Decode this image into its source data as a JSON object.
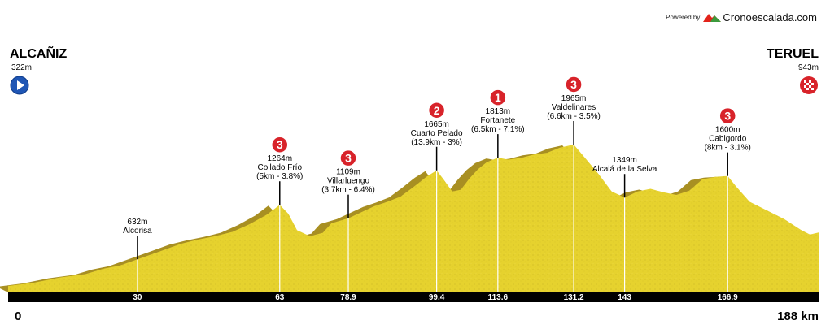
{
  "brand": {
    "powered": "Powered by",
    "name": "Cronoescalada.com"
  },
  "start": {
    "name": "ALCAÑIZ",
    "altitude": "322m",
    "icon": "play-icon"
  },
  "finish": {
    "name": "TERUEL",
    "altitude": "943m",
    "icon": "checkered-flag-icon"
  },
  "km_start_label": "0",
  "km_end_label": "188 km",
  "colors": {
    "fill": "#e6d22e",
    "shadow": "#a88f22",
    "badge": "#d8232a",
    "axis": "#000000",
    "start_icon": "#1f56b5"
  },
  "chart_data": {
    "type": "area",
    "xlabel": "",
    "ylabel": "",
    "xlim": [
      0,
      188
    ],
    "ylim": [
      0,
      2100
    ],
    "profile": [
      [
        0,
        322
      ],
      [
        6,
        360
      ],
      [
        12,
        420
      ],
      [
        18,
        460
      ],
      [
        22,
        520
      ],
      [
        26,
        560
      ],
      [
        30,
        632
      ],
      [
        35,
        720
      ],
      [
        40,
        810
      ],
      [
        44,
        860
      ],
      [
        48,
        900
      ],
      [
        52,
        950
      ],
      [
        56,
        1040
      ],
      [
        60,
        1150
      ],
      [
        63,
        1264
      ],
      [
        65,
        1160
      ],
      [
        67,
        970
      ],
      [
        70,
        900
      ],
      [
        73,
        940
      ],
      [
        75,
        1050
      ],
      [
        78.9,
        1109
      ],
      [
        82,
        1180
      ],
      [
        85,
        1250
      ],
      [
        88,
        1300
      ],
      [
        91,
        1360
      ],
      [
        94,
        1470
      ],
      [
        97,
        1590
      ],
      [
        99.4,
        1665
      ],
      [
        101,
        1560
      ],
      [
        103,
        1420
      ],
      [
        105,
        1440
      ],
      [
        107,
        1570
      ],
      [
        109,
        1680
      ],
      [
        111,
        1760
      ],
      [
        113.6,
        1813
      ],
      [
        116,
        1790
      ],
      [
        119,
        1810
      ],
      [
        122,
        1850
      ],
      [
        125,
        1870
      ],
      [
        128,
        1930
      ],
      [
        131.2,
        1965
      ],
      [
        134,
        1800
      ],
      [
        137,
        1620
      ],
      [
        140,
        1420
      ],
      [
        143,
        1349
      ],
      [
        146,
        1420
      ],
      [
        149,
        1450
      ],
      [
        152,
        1410
      ],
      [
        155,
        1380
      ],
      [
        158,
        1430
      ],
      [
        161,
        1560
      ],
      [
        164,
        1590
      ],
      [
        166.9,
        1600
      ],
      [
        169,
        1470
      ],
      [
        172,
        1300
      ],
      [
        176,
        1200
      ],
      [
        180,
        1100
      ],
      [
        184,
        970
      ],
      [
        186,
        920
      ],
      [
        188,
        943
      ]
    ],
    "markers": [
      {
        "km": "30",
        "x": 30,
        "alt": "632m",
        "name": "Alcorisa",
        "detail": "",
        "category": ""
      },
      {
        "km": "63",
        "x": 63,
        "alt": "1264m",
        "name": "Collado Frío",
        "detail": "(5km - 3.8%)",
        "category": "3"
      },
      {
        "km": "78.9",
        "x": 78.9,
        "alt": "1109m",
        "name": "Villarluengo",
        "detail": "(3.7km - 6.4%)",
        "category": "3"
      },
      {
        "km": "99.4",
        "x": 99.4,
        "alt": "1665m",
        "name": "Cuarto Pelado",
        "detail": "(13.9km - 3%)",
        "category": "2"
      },
      {
        "km": "113.6",
        "x": 113.6,
        "alt": "1813m",
        "name": "Fortanete",
        "detail": "(6.5km - 7.1%)",
        "category": "1"
      },
      {
        "km": "131.2",
        "x": 131.2,
        "alt": "1965m",
        "name": "Valdelinares",
        "detail": "(6.6km - 3.5%)",
        "category": "3"
      },
      {
        "km": "143",
        "x": 143,
        "alt": "1349m",
        "name": "Alcalá de la Selva",
        "detail": "",
        "category": ""
      },
      {
        "km": "166.9",
        "x": 166.9,
        "alt": "1600m",
        "name": "Cabigordo",
        "detail": "(8km - 3.1%)",
        "category": "3"
      }
    ]
  }
}
